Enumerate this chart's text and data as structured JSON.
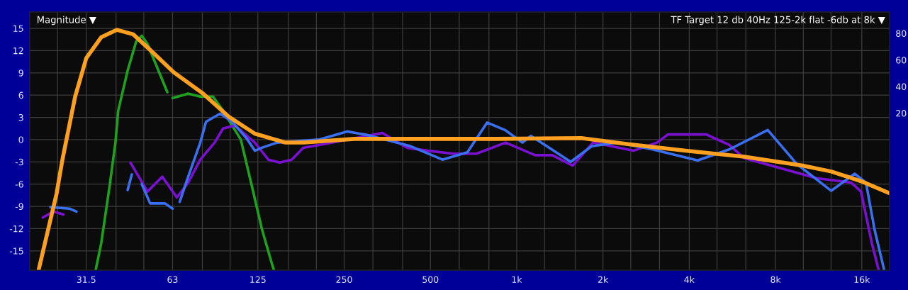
{
  "chart_data": {
    "type": "line",
    "title": "Magnitude ▼",
    "subtitle": "TF Target 12 db 40Hz 125-2k flat -6db at 8k ▼",
    "log": "x",
    "grid": true,
    "line_style": "solid",
    "xlim": [
      20,
      20000
    ],
    "xticks": [
      {
        "value": 25,
        "label": null
      },
      31.5,
      {
        "value": 40,
        "label": null
      },
      {
        "value": 50,
        "label": null
      },
      63,
      {
        "value": 80,
        "label": null
      },
      {
        "value": 100,
        "label": null
      },
      125,
      {
        "value": 160,
        "label": null
      },
      {
        "value": 200,
        "label": null
      },
      250,
      {
        "value": 315,
        "label": null
      },
      {
        "value": 400,
        "label": null
      },
      500,
      {
        "value": 630,
        "label": null
      },
      {
        "value": 800,
        "label": null
      },
      {
        "value": 1000,
        "label": "1k"
      },
      {
        "value": 1250,
        "label": null
      },
      {
        "value": 1600,
        "label": null
      },
      {
        "value": 2000,
        "label": "2k"
      },
      {
        "value": 2500,
        "label": null
      },
      {
        "value": 3150,
        "label": null
      },
      {
        "value": 4000,
        "label": "4k"
      },
      {
        "value": 5000,
        "label": null
      },
      {
        "value": 6300,
        "label": null
      },
      {
        "value": 8000,
        "label": "8k"
      },
      {
        "value": 10000,
        "label": null
      },
      {
        "value": 12500,
        "label": null
      },
      {
        "value": 16000,
        "label": "16k"
      }
    ],
    "ylim": [
      -17.6,
      17.2
    ],
    "yticks": [
      -15,
      -12,
      -9,
      -6,
      -3,
      0,
      3,
      6,
      9,
      12,
      15
    ],
    "y2lim": [
      -98,
      96
    ],
    "y2ticks": [
      20,
      40,
      60,
      80
    ],
    "series": [
      {
        "color": "#1fa01f",
        "x": [
          34,
          35.5,
          38,
          39.8,
          40.7,
          43.9,
          47,
          49.2,
          51.5,
          55.7,
          60.4,
          61.5,
          63,
          71.4,
          78.7,
          87.2,
          94.5,
          109,
          119,
          129,
          139.8,
          142
        ],
        "values": [
          -17.5,
          -14,
          -6.2,
          -0.4,
          3.9,
          9.3,
          13.2,
          14,
          12.9,
          9.7,
          6.4,
          null,
          5.6,
          6.2,
          5.8,
          5.8,
          3.9,
          0,
          -6.2,
          -12,
          -16.7,
          -17.5
        ]
      },
      {
        "color": "#7a10d0",
        "x": [
          22.2,
          24.2,
          26.2,
          35,
          44.9,
          51.5,
          58,
          65.2,
          71.4,
          78.7,
          88.3,
          94.5,
          104,
          122,
          136,
          149,
          164,
          180,
          228,
          340,
          415,
          491,
          600,
          724,
          915,
          1160,
          1331,
          1569,
          1846,
          2556,
          3087,
          3371,
          4588,
          5507,
          6224,
          11110,
          14700,
          15900,
          17350,
          18300
        ],
        "values": [
          -10.5,
          -9.7,
          -10.1,
          null,
          -3.1,
          -7,
          -5,
          -7.8,
          -5.8,
          -2.7,
          -0.4,
          1.5,
          1.9,
          -0.4,
          -2.7,
          -3.1,
          -2.7,
          -1.1,
          -0.4,
          0.9,
          -1.1,
          -1.5,
          -1.9,
          -1.9,
          -0.4,
          -2.1,
          -2.1,
          -3.5,
          -0.4,
          -1.5,
          -0.4,
          0.7,
          0.7,
          -0.7,
          -2.5,
          -5.2,
          -5.8,
          -7,
          -14,
          -17.5
        ]
      },
      {
        "color": "#3a6ff0",
        "x": [
          23.6,
          27.5,
          29.1,
          36,
          43.9,
          45.4,
          47,
          49.2,
          52.6,
          55.7,
          59.3,
          63,
          65,
          66.7,
          71.4,
          78.7,
          82.4,
          92.3,
          101.7,
          114,
          122,
          129,
          146,
          204,
          256,
          303,
          381,
          427,
          551,
          673,
          789,
          910,
          1047,
          1121,
          1300,
          1543,
          1826,
          2229,
          2965,
          4280,
          5536,
          7514,
          9498,
          12520,
          15110,
          16550,
          17720,
          19130
        ],
        "values": [
          -9.1,
          -9.3,
          -9.7,
          null,
          -6.8,
          -4.7,
          null,
          -6,
          -8.6,
          -8.6,
          -8.6,
          -9.3,
          null,
          -8.4,
          -5,
          -0.4,
          2.4,
          3.5,
          2.4,
          0.2,
          -1.5,
          -1.1,
          -0.4,
          0,
          1.1,
          0.6,
          -0.4,
          -0.9,
          -2.7,
          -1.7,
          2.3,
          1.3,
          -0.4,
          0.5,
          -1.1,
          -3,
          -0.9,
          -0.4,
          -1.3,
          -2.8,
          -1.3,
          1.3,
          -3.3,
          -6.9,
          -4.6,
          -5.8,
          -12.1,
          -17.5
        ]
      },
      {
        "color": "#ffa020",
        "x": [
          21.5,
          24.8,
          26,
          28.8,
          31.5,
          35.5,
          40.3,
          45.9,
          52.6,
          63.5,
          80.5,
          98.9,
          122,
          156,
          181,
          271,
          478,
          845,
          1681,
          2442,
          3887,
          6224,
          9935,
          12520,
          15900,
          19900
        ],
        "values": [
          -17.5,
          -7.3,
          -2.7,
          5.8,
          11,
          13.8,
          14.8,
          14.2,
          12.1,
          9.1,
          6.2,
          3.1,
          0.8,
          -0.4,
          -0.4,
          0.1,
          0.1,
          0.1,
          0.2,
          -0.6,
          -1.5,
          -2.3,
          -3.5,
          -4.3,
          -5.6,
          -7.2
        ]
      }
    ]
  }
}
